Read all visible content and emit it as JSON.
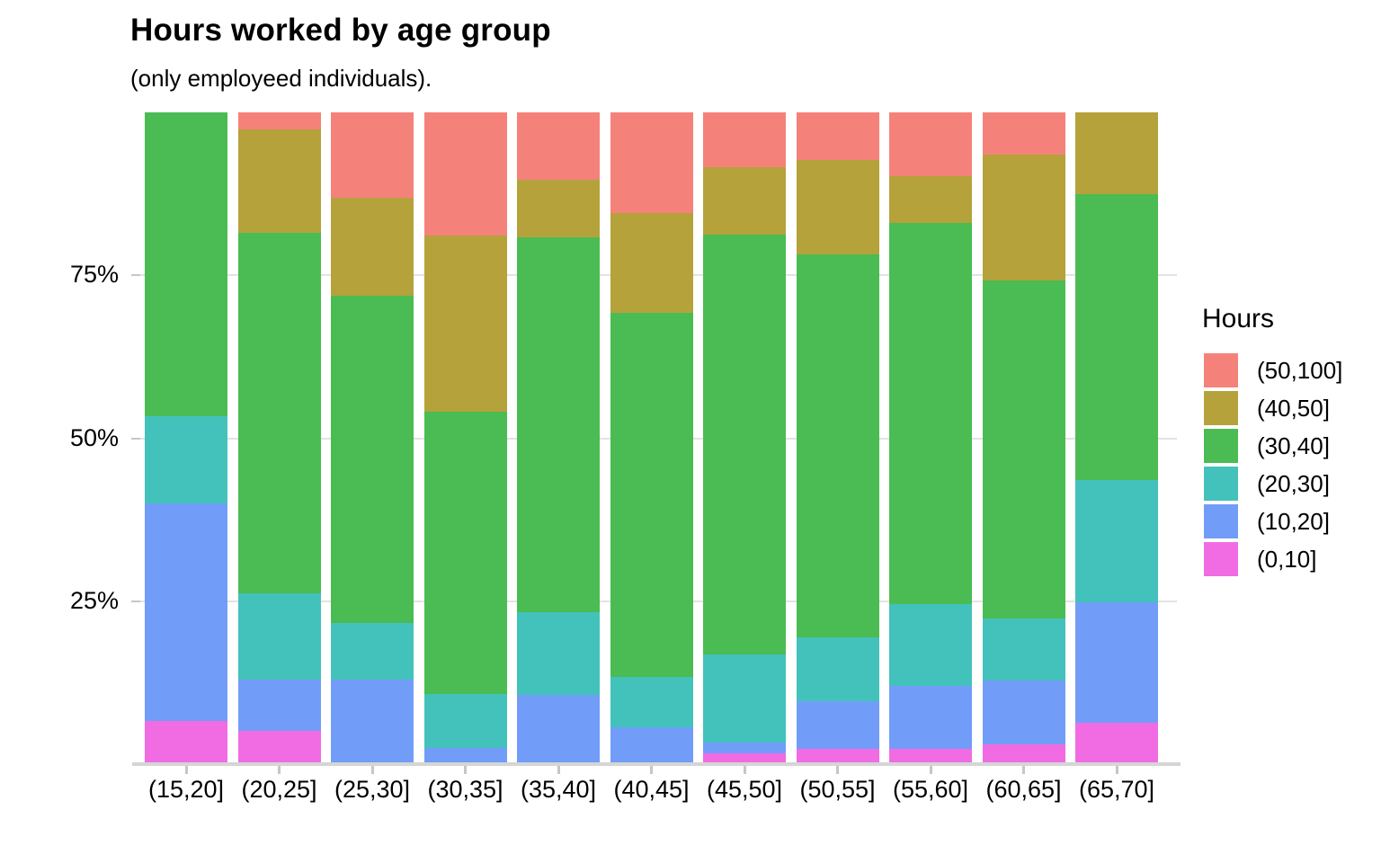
{
  "title": "Hours worked by age group",
  "subtitle": "(only employeed individuals).",
  "legend": {
    "title": "Hours",
    "entries": [
      {
        "label": "(50,100]",
        "color": "#f5827a"
      },
      {
        "label": "(40,50]",
        "color": "#b5a23b"
      },
      {
        "label": "(30,40]",
        "color": "#4abc53"
      },
      {
        "label": "(20,30]",
        "color": "#43c2bc"
      },
      {
        "label": "(10,20]",
        "color": "#719df8"
      },
      {
        "label": "(0,10]",
        "color": "#f16ce2"
      }
    ]
  },
  "y_axis": {
    "tick_labels": [
      "75%",
      "50%",
      "25%"
    ],
    "tick_values": [
      75,
      50,
      25
    ]
  },
  "chart_data": {
    "type": "bar",
    "variant": "percent-stacked-vertical",
    "title": "Hours worked by age group",
    "subtitle": "(only employeed individuals).",
    "xlabel": "",
    "ylabel": "",
    "ylim": [
      0,
      100
    ],
    "yticks_percent": [
      25,
      50,
      75
    ],
    "grid": "horizontal-major-only",
    "legend_position": "right",
    "legend_title": "Hours",
    "categories": [
      "(15,20]",
      "(20,25]",
      "(25,30]",
      "(30,35]",
      "(35,40]",
      "(40,45]",
      "(45,50]",
      "(50,55]",
      "(55,60]",
      "(60,65]",
      "(65,70]"
    ],
    "series_note": "values are percent of bar, listed bottom-to-top of stack",
    "series": [
      {
        "name": "(0,10]",
        "color": "#f16ce2",
        "values": [
          6.6,
          5.1,
          0.0,
          0.0,
          0.0,
          0.0,
          1.7,
          2.3,
          2.3,
          3.0,
          6.3
        ]
      },
      {
        "name": "(10,20]",
        "color": "#719df8",
        "values": [
          33.4,
          7.9,
          13.0,
          2.5,
          10.6,
          5.7,
          1.6,
          7.4,
          9.7,
          9.8,
          18.5
        ]
      },
      {
        "name": "(20,30]",
        "color": "#43c2bc",
        "values": [
          13.4,
          13.2,
          8.7,
          8.3,
          12.7,
          7.7,
          13.5,
          9.7,
          12.6,
          9.5,
          18.8
        ]
      },
      {
        "name": "(30,40]",
        "color": "#4abc53",
        "values": [
          46.6,
          55.3,
          50.2,
          43.3,
          57.5,
          55.8,
          64.4,
          58.8,
          58.4,
          51.9,
          43.8
        ]
      },
      {
        "name": "(40,50]",
        "color": "#b5a23b",
        "values": [
          0.0,
          15.9,
          15.0,
          27.0,
          8.9,
          15.4,
          10.4,
          14.5,
          7.2,
          19.3,
          12.6
        ]
      },
      {
        "name": "(50,100]",
        "color": "#f5827a",
        "values": [
          0.0,
          2.6,
          13.1,
          18.9,
          10.3,
          15.4,
          8.4,
          7.3,
          9.8,
          6.5,
          0.0
        ]
      }
    ]
  }
}
